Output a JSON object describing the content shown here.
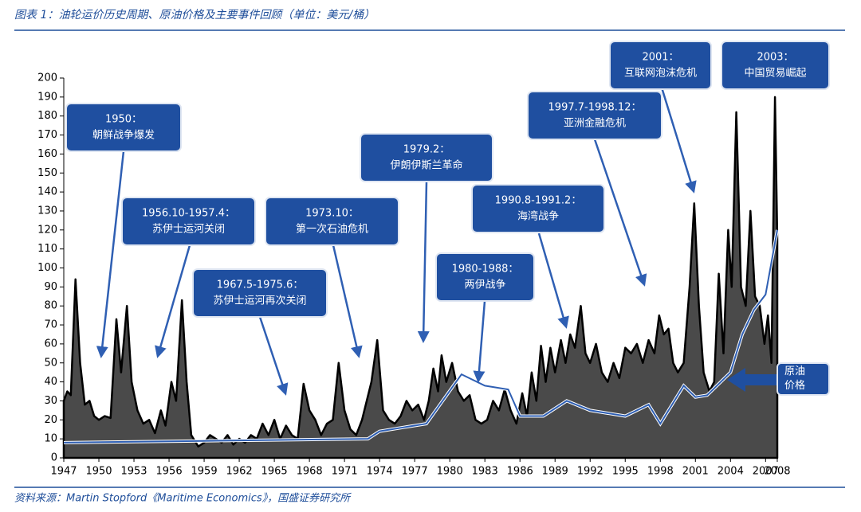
{
  "chart_data": {
    "type": "area",
    "title": "图表 1：油轮运价历史周期、原油价格及主要事件回顾（单位：美元/桶）",
    "source": "资料来源：Martin Stopford《Maritime Economics》，国盛证券研究所",
    "xlim": [
      1947,
      2008
    ],
    "xticks": [
      1947,
      1950,
      1953,
      1956,
      1959,
      1962,
      1965,
      1968,
      1971,
      1974,
      1977,
      1980,
      1983,
      1986,
      1989,
      1992,
      1995,
      1998,
      2001,
      2004,
      2007,
      2008
    ],
    "ylim": [
      0,
      200
    ],
    "yticks": [
      0,
      10,
      20,
      30,
      40,
      50,
      60,
      70,
      80,
      90,
      100,
      110,
      120,
      130,
      140,
      150,
      160,
      170,
      180,
      190,
      200
    ],
    "series": [
      {
        "color": "#4a4a4a",
        "x": [
          1947,
          1947.3,
          1947.6,
          1948,
          1948.4,
          1948.8,
          1949.2,
          1949.6,
          1950,
          1950.5,
          1951,
          1951.5,
          1951.9,
          1952.4,
          1952.8,
          1953.3,
          1953.8,
          1954.3,
          1954.8,
          1955.3,
          1955.7,
          1956.2,
          1956.6,
          1957.1,
          1957.5,
          1957.9,
          1958.5,
          1959,
          1959.5,
          1960,
          1960.5,
          1961,
          1961.5,
          1962,
          1962.5,
          1963,
          1963.5,
          1964,
          1964.5,
          1965,
          1965.5,
          1966,
          1966.5,
          1967,
          1967.5,
          1968,
          1968.5,
          1969,
          1969.5,
          1970,
          1970.5,
          1971,
          1971.5,
          1972,
          1972.5,
          1973.3,
          1973.8,
          1974.3,
          1974.8,
          1975.3,
          1975.8,
          1976.3,
          1976.8,
          1977.3,
          1977.8,
          1978.2,
          1978.6,
          1979,
          1979.3,
          1979.7,
          1980.2,
          1980.7,
          1981.2,
          1981.7,
          1982.2,
          1982.7,
          1983.2,
          1983.7,
          1984.2,
          1984.7,
          1985.2,
          1985.7,
          1986.2,
          1986.6,
          1987,
          1987.4,
          1987.8,
          1988.2,
          1988.6,
          1989,
          1989.5,
          1989.9,
          1990.3,
          1990.7,
          1991.2,
          1991.6,
          1992,
          1992.5,
          1993,
          1993.5,
          1994,
          1994.5,
          1995,
          1995.5,
          1996,
          1996.5,
          1997,
          1997.5,
          1997.9,
          1998.3,
          1998.7,
          1999.1,
          1999.5,
          2000,
          2000.5,
          2000.9,
          2001.3,
          2001.7,
          2002.2,
          2002.6,
          2003,
          2003.4,
          2003.8,
          2004.1,
          2004.5,
          2004.9,
          2005.3,
          2005.7,
          2006.1,
          2006.5,
          2006.9,
          2007.2,
          2007.5,
          2007.8,
          2008
        ],
        "values": [
          30,
          35,
          33,
          94,
          50,
          28,
          30,
          22,
          20,
          22,
          21,
          73,
          45,
          80,
          40,
          25,
          18,
          20,
          13,
          25,
          17,
          40,
          30,
          83,
          40,
          12,
          6,
          8,
          12,
          10,
          8,
          12,
          7,
          10,
          8,
          12,
          10,
          18,
          12,
          20,
          10,
          17,
          12,
          10,
          39,
          25,
          20,
          12,
          18,
          20,
          50,
          25,
          15,
          12,
          20,
          40,
          62,
          25,
          20,
          18,
          22,
          30,
          25,
          28,
          20,
          30,
          47,
          35,
          54,
          40,
          50,
          35,
          30,
          33,
          20,
          18,
          20,
          30,
          25,
          36,
          25,
          18,
          34,
          22,
          45,
          30,
          59,
          40,
          58,
          45,
          62,
          50,
          65,
          58,
          80,
          55,
          50,
          60,
          45,
          40,
          50,
          42,
          58,
          55,
          60,
          50,
          62,
          55,
          75,
          65,
          68,
          50,
          45,
          50,
          90,
          134,
          80,
          45,
          35,
          40,
          97,
          55,
          120,
          90,
          182,
          90,
          80,
          130,
          85,
          80,
          60,
          75,
          50,
          190,
          115
        ]
      },
      {
        "name": "原油价格",
        "color": "#2f5fb3",
        "x": [
          1947,
          1960,
          1973,
          1974,
          1978,
          1981,
          1983,
          1985,
          1986,
          1988,
          1990,
          1992,
          1995,
          1997,
          1998,
          2000,
          2001,
          2002,
          2004,
          2005,
          2006,
          2007,
          2008
        ],
        "values": [
          8,
          9,
          10,
          14,
          18,
          44,
          38,
          36,
          22,
          22,
          30,
          25,
          22,
          28,
          18,
          38,
          32,
          33,
          45,
          65,
          78,
          86,
          120
        ]
      }
    ],
    "annotations": [
      {
        "lines": [
          "1950：",
          "朝鲜战争爆发"
        ]
      },
      {
        "lines": [
          "1956.10-1957.4：",
          "苏伊士运河关闭"
        ]
      },
      {
        "lines": [
          "1973.10：",
          "第一次石油危机"
        ]
      },
      {
        "lines": [
          "1967.5-1975.6：",
          "苏伊士运河再次关闭"
        ]
      },
      {
        "lines": [
          "1979.2：",
          "伊朗伊斯兰革命"
        ]
      },
      {
        "lines": [
          "1980-1988：",
          "两伊战争"
        ]
      },
      {
        "lines": [
          "1990.8-1991.2：",
          "海湾战争"
        ]
      },
      {
        "lines": [
          "1997.7-1998.12：",
          "亚洲金融危机"
        ]
      },
      {
        "lines": [
          "2001：",
          "互联网泡沫危机"
        ]
      },
      {
        "lines": [
          "2003：",
          "中国贸易崛起"
        ]
      }
    ]
  }
}
